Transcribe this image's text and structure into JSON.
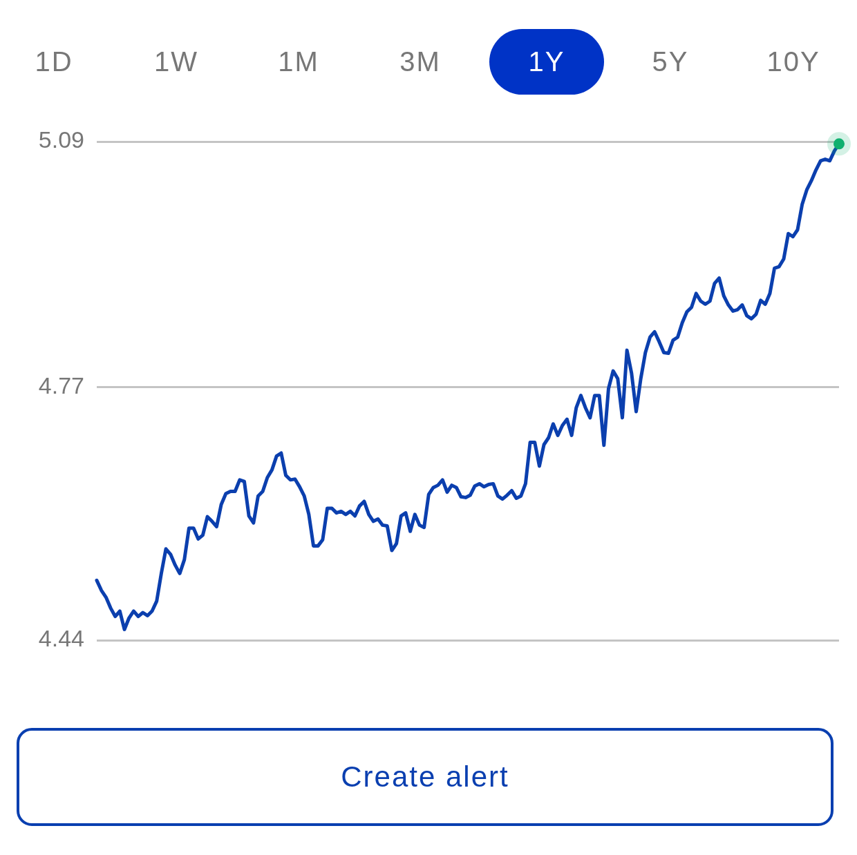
{
  "chart_data": {
    "type": "line",
    "annotations": [
      "1D",
      "1W",
      "1M",
      "3M",
      "1Y",
      "5Y",
      "10Y",
      "Create alert"
    ],
    "categories": [
      null,
      null,
      null,
      null,
      null,
      null,
      null,
      null,
      null,
      null,
      null,
      null,
      null,
      null,
      null,
      null,
      null,
      null,
      null,
      null,
      null,
      null,
      null,
      null,
      null,
      null,
      null,
      null,
      null,
      null,
      null,
      null,
      null,
      null,
      null,
      null,
      null,
      null,
      null,
      null,
      null,
      null,
      null,
      null,
      null,
      null,
      null,
      null,
      null,
      null,
      null,
      null,
      null,
      null,
      null,
      null,
      null,
      null,
      null,
      null,
      null,
      null,
      null,
      null,
      null,
      null,
      null,
      null,
      null,
      null,
      null,
      null,
      null,
      null,
      null,
      null,
      null,
      null,
      null,
      null,
      null,
      null,
      null,
      null,
      null,
      null,
      null,
      null,
      null,
      null,
      null,
      null,
      null,
      null,
      null,
      null,
      null,
      null,
      null,
      null,
      null,
      null,
      null,
      null,
      null,
      null,
      null,
      null,
      null,
      null,
      null,
      null,
      null,
      null,
      null,
      null,
      null,
      null,
      null,
      null,
      null,
      null,
      null,
      null,
      null,
      null,
      null,
      null,
      null,
      null,
      null,
      null,
      null,
      null,
      null,
      null,
      null,
      null,
      null,
      null,
      null,
      null,
      null,
      null,
      null,
      null,
      null,
      null,
      null,
      null,
      null,
      null,
      null,
      null,
      null,
      null,
      null,
      null,
      null,
      null,
      null,
      null
    ],
    "series": [
      {
        "color": "#0b3fae",
        "values": [
          4.518,
          4.505,
          4.496,
          4.482,
          4.471,
          4.478,
          4.454,
          4.469,
          4.478,
          4.471,
          4.476,
          4.472,
          4.478,
          4.491,
          4.527,
          4.559,
          4.552,
          4.538,
          4.527,
          4.545,
          4.586,
          4.586,
          4.572,
          4.577,
          4.601,
          4.595,
          4.588,
          4.617,
          4.631,
          4.634,
          4.634,
          4.649,
          4.647,
          4.602,
          4.593,
          4.628,
          4.634,
          4.652,
          4.662,
          4.68,
          4.684,
          4.655,
          4.649,
          4.65,
          4.64,
          4.628,
          4.604,
          4.563,
          4.563,
          4.571,
          4.612,
          4.612,
          4.606,
          4.608,
          4.604,
          4.608,
          4.602,
          4.615,
          4.621,
          4.604,
          4.595,
          4.598,
          4.59,
          4.589,
          4.557,
          4.566,
          4.602,
          4.606,
          4.582,
          4.604,
          4.59,
          4.587,
          4.63,
          4.639,
          4.642,
          4.649,
          4.633,
          4.642,
          4.639,
          4.627,
          4.626,
          4.629,
          4.641,
          4.644,
          4.64,
          4.643,
          4.644,
          4.628,
          4.624,
          4.629,
          4.635,
          4.625,
          4.628,
          4.644,
          4.698,
          4.698,
          4.667,
          4.695,
          4.704,
          4.722,
          4.707,
          4.72,
          4.728,
          4.707,
          4.743,
          4.759,
          4.743,
          4.73,
          4.759,
          4.759,
          4.694,
          4.768,
          4.791,
          4.781,
          4.73,
          4.818,
          4.788,
          4.738,
          4.781,
          4.815,
          4.835,
          4.842,
          4.829,
          4.815,
          4.814,
          4.831,
          4.835,
          4.854,
          4.868,
          4.874,
          4.892,
          4.882,
          4.878,
          4.882,
          4.905,
          4.912,
          4.889,
          4.877,
          4.869,
          4.871,
          4.877,
          4.863,
          4.859,
          4.865,
          4.883,
          4.878,
          4.892,
          4.925,
          4.927,
          4.937,
          4.97,
          4.966,
          4.975,
          5.008,
          5.027,
          5.039,
          5.053,
          5.065,
          5.067,
          5.065,
          5.078,
          5.087
        ]
      }
    ],
    "ylim": [
      4.44,
      5.09
    ],
    "yticks": [
      4.44,
      4.77,
      5.09
    ],
    "grid": "y",
    "legend": false
  }
}
